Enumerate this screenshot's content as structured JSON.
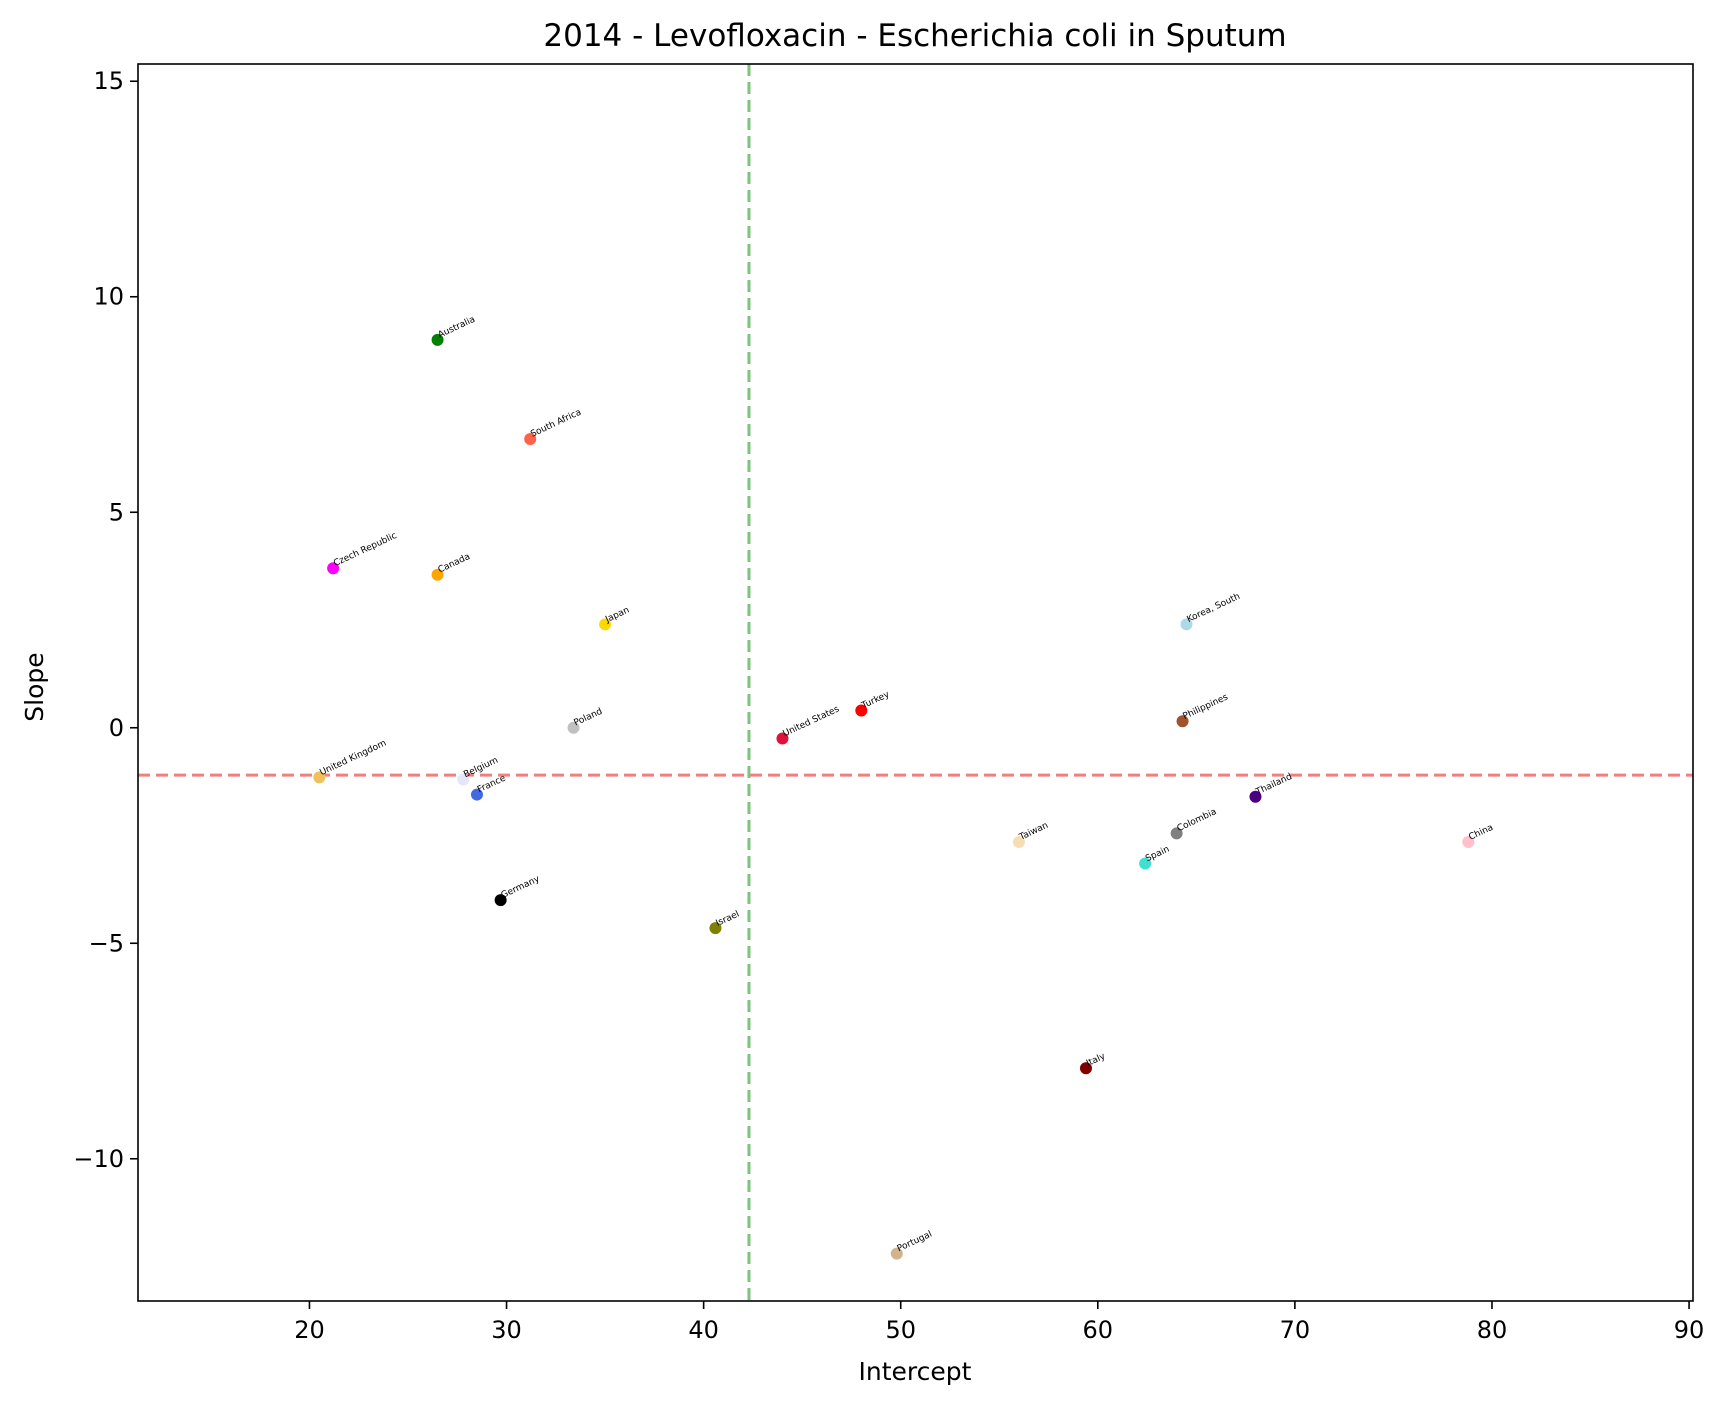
{
  "chart_data": {
    "type": "scatter",
    "title": "2014 - Levofloxacin - Escherichia coli in Sputum",
    "xlabel": "Intercept",
    "ylabel": "Slope",
    "xlim": [
      11.3,
      90.2
    ],
    "ylim": [
      -13.3,
      15.4
    ],
    "xticks": [
      20,
      30,
      40,
      50,
      60,
      70,
      80,
      90
    ],
    "yticks": [
      -10,
      -5,
      0,
      5,
      10,
      15
    ],
    "ytick_labels": [
      "−10",
      "−5",
      "0",
      "5",
      "10",
      "15"
    ],
    "grid": false,
    "reference_lines": [
      {
        "orientation": "vertical",
        "value": 42.3,
        "color": "#7cc47c",
        "style": "dashed"
      },
      {
        "orientation": "horizontal",
        "value": -1.1,
        "color": "#f08080",
        "style": "dashed"
      }
    ],
    "points": [
      {
        "label": "Australia",
        "x": 26.5,
        "y": 9.0,
        "color": "#008000"
      },
      {
        "label": "South Africa",
        "x": 31.2,
        "y": 6.7,
        "color": "#ff6347"
      },
      {
        "label": "Czech Republic",
        "x": 21.2,
        "y": 3.7,
        "color": "#ff00ff"
      },
      {
        "label": "Canada",
        "x": 26.5,
        "y": 3.55,
        "color": "#ffa500"
      },
      {
        "label": "Japan",
        "x": 35.0,
        "y": 2.4,
        "color": "#ffd700"
      },
      {
        "label": "Korea, South",
        "x": 64.5,
        "y": 2.4,
        "color": "#add8e6"
      },
      {
        "label": "Poland",
        "x": 33.4,
        "y": 0.0,
        "color": "#c0c0c0"
      },
      {
        "label": "United States",
        "x": 44.0,
        "y": -0.25,
        "color": "#dc143c"
      },
      {
        "label": "Turkey",
        "x": 48.0,
        "y": 0.4,
        "color": "#ff0000"
      },
      {
        "label": "Philippines",
        "x": 64.3,
        "y": 0.15,
        "color": "#a0522d"
      },
      {
        "label": "United Kingdom",
        "x": 20.5,
        "y": -1.15,
        "color": "#f0c05a"
      },
      {
        "label": "Belgium",
        "x": 27.8,
        "y": -1.2,
        "color": "#e6e6fa"
      },
      {
        "label": "France",
        "x": 28.5,
        "y": -1.55,
        "color": "#4169e1"
      },
      {
        "label": "Thailand",
        "x": 68.0,
        "y": -1.6,
        "color": "#4b0082"
      },
      {
        "label": "Taiwan",
        "x": 56.0,
        "y": -2.65,
        "color": "#f5deb3"
      },
      {
        "label": "Colombia",
        "x": 64.0,
        "y": -2.45,
        "color": "#808080"
      },
      {
        "label": "China",
        "x": 78.8,
        "y": -2.65,
        "color": "#ffc0cb"
      },
      {
        "label": "Spain",
        "x": 62.4,
        "y": -3.15,
        "color": "#40e0d0"
      },
      {
        "label": "Germany",
        "x": 29.7,
        "y": -4.0,
        "color": "#000000"
      },
      {
        "label": "Israel",
        "x": 40.6,
        "y": -4.65,
        "color": "#808000"
      },
      {
        "label": "Italy",
        "x": 59.4,
        "y": -7.9,
        "color": "#800000"
      },
      {
        "label": "Portugal",
        "x": 49.8,
        "y": -12.2,
        "color": "#d2b48c"
      }
    ]
  }
}
